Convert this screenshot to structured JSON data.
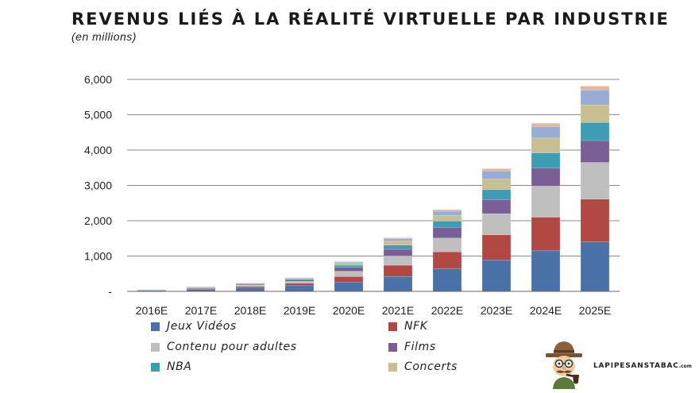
{
  "chart_data": {
    "type": "bar",
    "stacked": true,
    "title": "REVENUS LIÉS À LA RÉALITÉ VIRTUELLE PAR INDUSTRIE",
    "subtitle": "(en millions)",
    "xlabel": "",
    "ylabel": "",
    "ylim": [
      0,
      6000
    ],
    "yticks": [
      0,
      1000,
      2000,
      3000,
      4000,
      5000,
      6000
    ],
    "ytick_labels": [
      "-",
      "1,000",
      "2,000",
      "3,000",
      "4,000",
      "5,000",
      "6,000"
    ],
    "grid": true,
    "legend_position": "bottom",
    "categories": [
      "2016E",
      "2017E",
      "2018E",
      "2019E",
      "2020E",
      "2021E",
      "2022E",
      "2023E",
      "2024E",
      "2025E"
    ],
    "series": [
      {
        "name": "Jeux Vidéos",
        "color": "#4a72a8",
        "values": [
          25,
          60,
          100,
          160,
          260,
          420,
          640,
          880,
          1150,
          1400
        ]
      },
      {
        "name": "NFK",
        "color": "#b24844",
        "values": [
          10,
          25,
          40,
          70,
          160,
          320,
          480,
          720,
          950,
          1210
        ]
      },
      {
        "name": "Contenu pour adultes",
        "color": "#bfbfbf",
        "values": [
          8,
          20,
          35,
          55,
          150,
          260,
          390,
          600,
          880,
          1040
        ]
      },
      {
        "name": "Films",
        "color": "#7a5e96",
        "values": [
          5,
          13,
          25,
          40,
          110,
          190,
          300,
          400,
          510,
          620
        ]
      },
      {
        "name": "NBA",
        "color": "#3d9db4",
        "values": [
          3,
          8,
          15,
          25,
          60,
          120,
          180,
          280,
          430,
          510
        ]
      },
      {
        "name": "Concerts",
        "color": "#c9be92",
        "values": [
          3,
          8,
          14,
          22,
          55,
          110,
          160,
          300,
          420,
          500
        ]
      },
      {
        "name": "",
        "color": "#97add6",
        "values": [
          2,
          6,
          9,
          14,
          35,
          70,
          120,
          230,
          330,
          420
        ]
      },
      {
        "name": "",
        "color": "#e5b69b",
        "values": [
          1,
          3,
          5,
          8,
          15,
          30,
          45,
          65,
          90,
          110
        ]
      }
    ]
  },
  "logo": {
    "text": "LAPIPESANSTABAC",
    "suffix": ".com"
  }
}
